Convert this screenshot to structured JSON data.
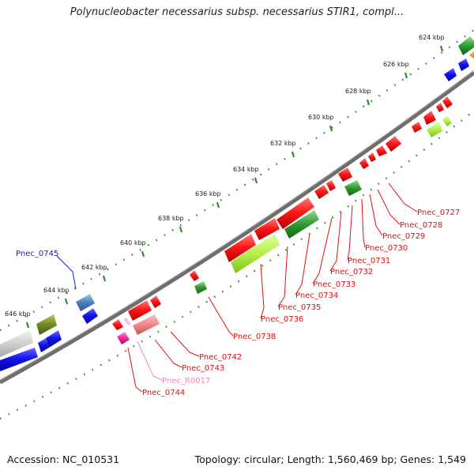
{
  "title": "Polynucleobacter necessarius subsp. necessarius STIR1, compl...",
  "footer": {
    "accession": "Accession: NC_010531",
    "summary": "Topology: circular; Length: 1,560,469 bp; Genes: 1,549"
  },
  "colors": {
    "backbone": "#777777",
    "tick": "#2e8b2e",
    "forward_gene": "#ee1111",
    "reverse_gene": "#1515dd",
    "rrna": "#ff69b4",
    "lime": "#aef03a",
    "green": "#2f9a2f"
  },
  "ticks": [
    {
      "label": "624 kbp"
    },
    {
      "label": "626 kbp"
    },
    {
      "label": "628 kbp"
    },
    {
      "label": "630 kbp"
    },
    {
      "label": "632 kbp"
    },
    {
      "label": "634 kbp"
    },
    {
      "label": "636 kbp"
    },
    {
      "label": "638 kbp"
    },
    {
      "label": "640 kbp"
    },
    {
      "label": "642 kbp"
    },
    {
      "label": "644 kbp"
    },
    {
      "label": "646 kbp"
    }
  ],
  "gene_labels": [
    {
      "text": "Pnec_0727",
      "color": "#dd1111"
    },
    {
      "text": "Pnec_0728",
      "color": "#dd1111"
    },
    {
      "text": "Pnec_0729",
      "color": "#dd1111"
    },
    {
      "text": "Pnec_0730",
      "color": "#dd1111"
    },
    {
      "text": "Pnec_0731",
      "color": "#dd1111"
    },
    {
      "text": "Pnec_0732",
      "color": "#dd1111"
    },
    {
      "text": "Pnec_0733",
      "color": "#dd1111"
    },
    {
      "text": "Pnec_0734",
      "color": "#dd1111"
    },
    {
      "text": "Pnec_0735",
      "color": "#dd1111"
    },
    {
      "text": "Pnec_0736",
      "color": "#dd1111"
    },
    {
      "text": "Pnec_0738",
      "color": "#dd1111"
    },
    {
      "text": "Pnec_0742",
      "color": "#dd1111"
    },
    {
      "text": "Pnec_0743",
      "color": "#dd1111"
    },
    {
      "text": "Pnec_R0017",
      "color": "#ee88bb"
    },
    {
      "text": "Pnec_0744",
      "color": "#dd1111"
    },
    {
      "text": "Pnec_0745",
      "color": "#1a1acc"
    }
  ]
}
